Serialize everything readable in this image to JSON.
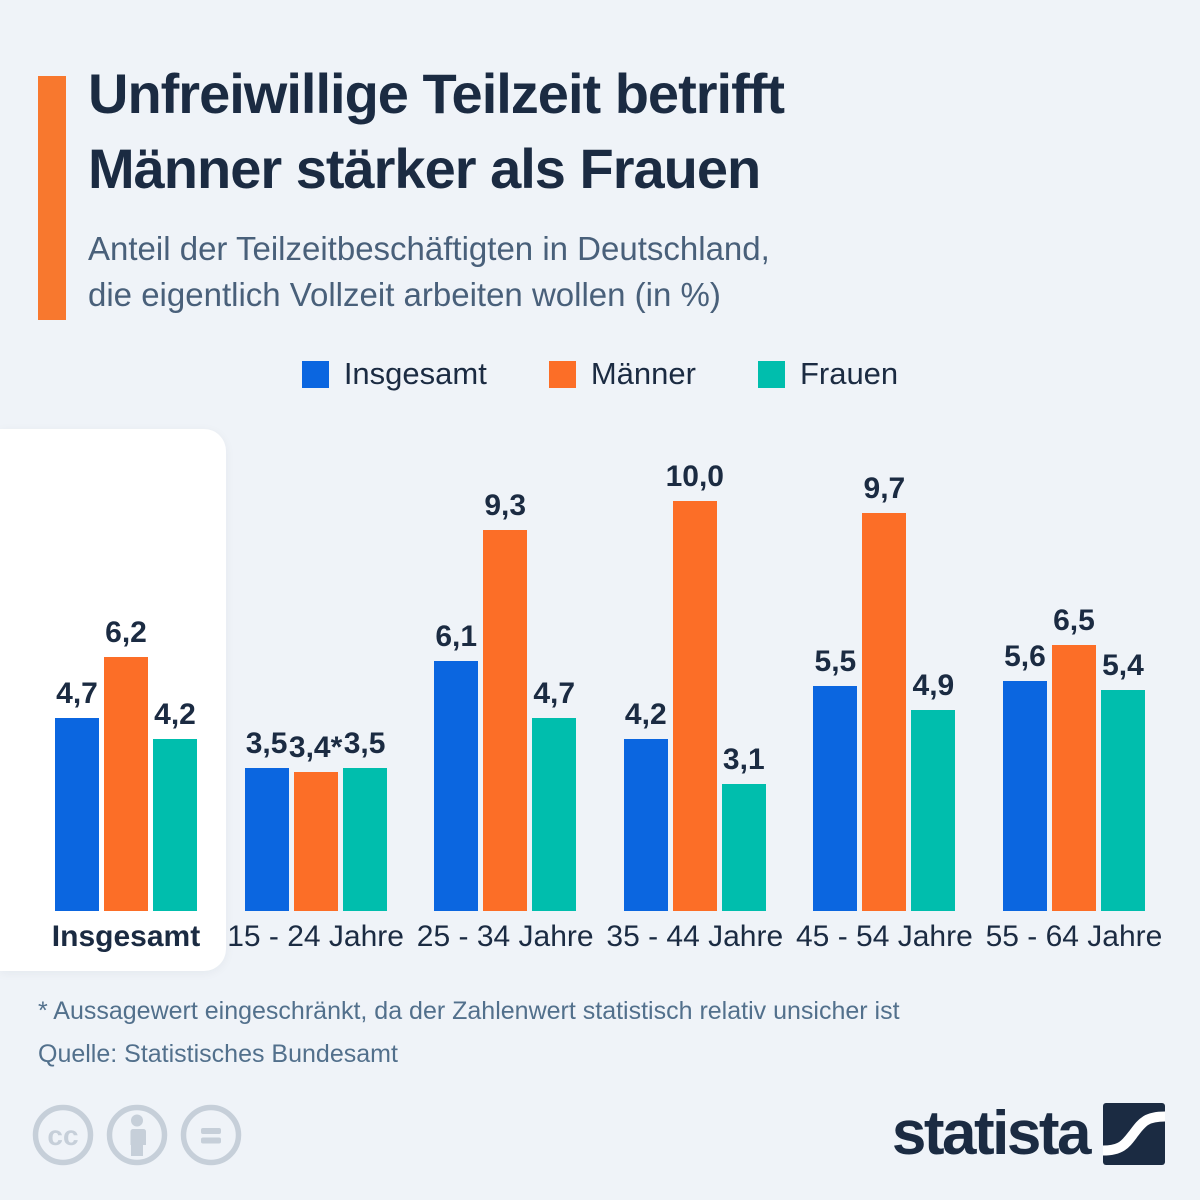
{
  "header": {
    "title_line1": "Unfreiwillige Teilzeit betrifft",
    "title_line2": "Männer stärker als Frauen",
    "subtitle_line1": "Anteil der Teilzeitbeschäftigten in Deutschland,",
    "subtitle_line2": "die eigentlich Vollzeit arbeiten wollen (in %)"
  },
  "legend": [
    {
      "label": "Insgesamt",
      "color": "#0b66e0"
    },
    {
      "label": "Männer",
      "color": "#fc6e27"
    },
    {
      "label": "Frauen",
      "color": "#00bead"
    }
  ],
  "chart_data": {
    "type": "bar",
    "title": "Unfreiwillige Teilzeit betrifft Männer stärker als Frauen",
    "subtitle": "Anteil der Teilzeitbeschäftigten in Deutschland, die eigentlich Vollzeit arbeiten wollen (in %)",
    "unit": "%",
    "ylim": [
      0,
      10
    ],
    "grid": false,
    "legend_position": "top-center",
    "categories": [
      "Insgesamt",
      "15 - 24 Jahre",
      "25 - 34 Jahre",
      "35 - 44 Jahre",
      "45 - 54 Jahre",
      "55 - 64 Jahre"
    ],
    "highlighted_category": "Insgesamt",
    "series": [
      {
        "name": "Insgesamt",
        "color": "#0b66e0",
        "values": [
          4.7,
          3.5,
          6.1,
          4.2,
          5.5,
          5.6
        ],
        "labels": [
          "4,7",
          "3,5",
          "6,1",
          "4,2",
          "5,5",
          "5,6"
        ]
      },
      {
        "name": "Männer",
        "color": "#fc6e27",
        "values": [
          6.2,
          3.4,
          9.3,
          10.0,
          9.7,
          6.5
        ],
        "labels": [
          "6,2",
          "3,4*",
          "9,3",
          "10,0",
          "9,7",
          "6,5"
        ]
      },
      {
        "name": "Frauen",
        "color": "#00bead",
        "values": [
          4.2,
          3.5,
          4.7,
          3.1,
          4.9,
          5.4
        ],
        "labels": [
          "4,2",
          "3,5",
          "4,7",
          "3,1",
          "4,9",
          "5,4"
        ]
      }
    ]
  },
  "footnote": "* Aussagewert eingeschränkt, da der Zahlenwert statistisch relativ unsicher ist",
  "source": "Quelle: Statistisches Bundesamt",
  "branding": {
    "logo_text": "statista",
    "license_icons": [
      "cc-icon",
      "person-icon",
      "equals-icon"
    ]
  },
  "colors": {
    "background": "#eff3f8",
    "accent_orange": "#f8782e",
    "navy_text": "#1b2b42",
    "subtitle_gray": "#49607a",
    "footer_gray": "#52708c",
    "license_gray": "#c6cfd9",
    "highlight_box": "#ffffff"
  }
}
